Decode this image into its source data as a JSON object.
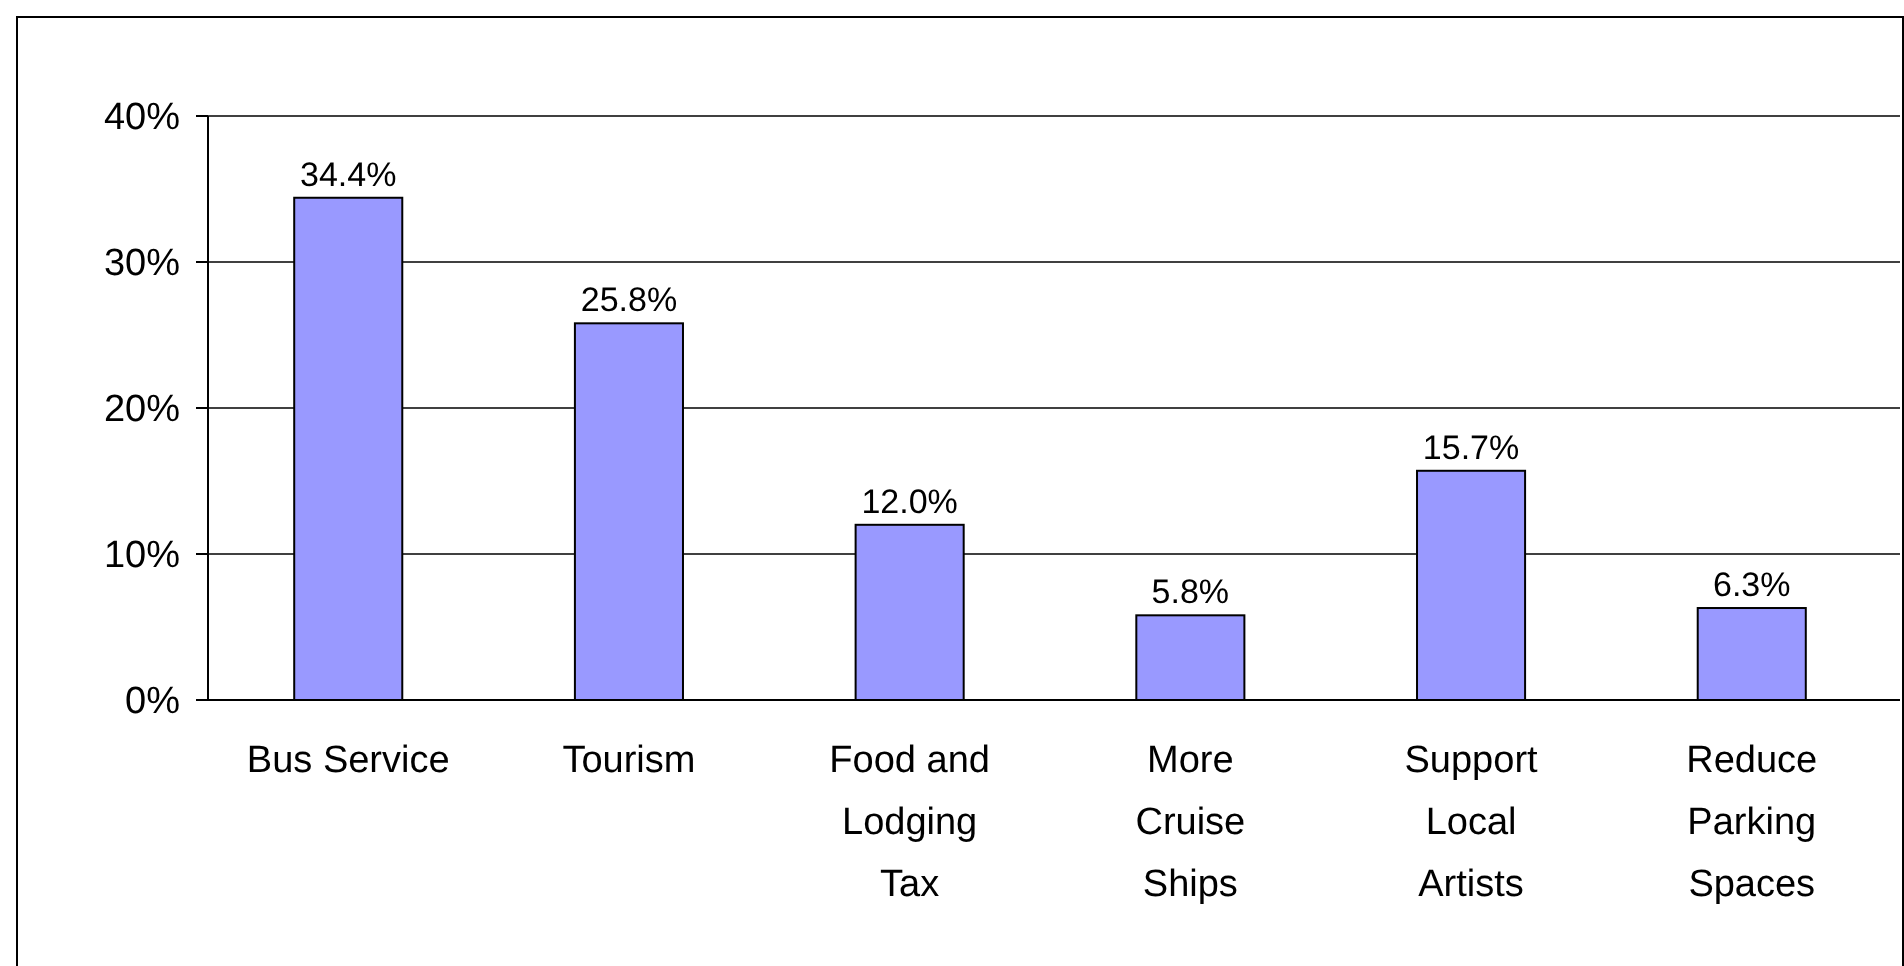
{
  "chart_data": {
    "type": "bar",
    "categories": [
      "Bus Service",
      "Tourism",
      "Food and Lodging Tax",
      "More Cruise Ships",
      "Support Local Artists",
      "Reduce Parking Spaces"
    ],
    "values": [
      34.4,
      25.8,
      12.0,
      5.8,
      15.7,
      6.3
    ],
    "value_labels": [
      "34.4%",
      "25.8%",
      "12.0%",
      "5.8%",
      "15.7%",
      "6.3%"
    ],
    "color": "#9999ff",
    "ylim": [
      0,
      40
    ],
    "yticks": [
      {
        "value": 0,
        "label": "0%"
      },
      {
        "value": 10,
        "label": "10%"
      },
      {
        "value": 20,
        "label": "20%"
      },
      {
        "value": 30,
        "label": "30%"
      },
      {
        "value": 40,
        "label": "40%"
      }
    ],
    "grid": "y"
  }
}
